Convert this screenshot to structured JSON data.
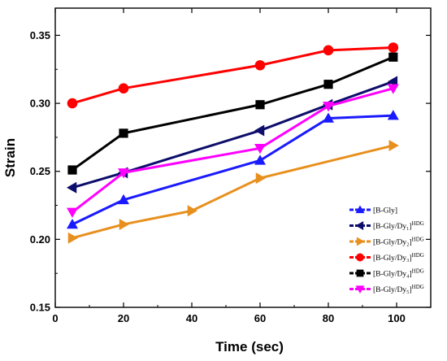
{
  "chart_data": {
    "type": "line",
    "title": "",
    "xlabel": "Time (sec)",
    "ylabel": "Strain",
    "xlim": [
      0,
      110
    ],
    "ylim": [
      0.15,
      0.37
    ],
    "xticks": [
      0,
      20,
      40,
      60,
      80,
      100
    ],
    "yticks": [
      0.15,
      0.2,
      0.25,
      0.3,
      0.35
    ],
    "xtick_labels": [
      "0",
      "20",
      "40",
      "60",
      "80",
      "100"
    ],
    "ytick_labels": [
      "0.15",
      "0.20",
      "0.25",
      "0.30",
      "0.35"
    ],
    "grid": false,
    "legend_position": "bottom-right",
    "series": [
      {
        "name": "[B-Gly]",
        "legend_main": "[B-Gly]",
        "legend_sup": "",
        "color": "#1a1aff",
        "marker": "triangle-up",
        "x": [
          5,
          20,
          60,
          80,
          99
        ],
        "y": [
          0.211,
          0.229,
          0.258,
          0.289,
          0.291
        ]
      },
      {
        "name": "[B-Gly/Dy1]HDG",
        "legend_main": "[B-Gly/Dy₁]",
        "legend_sup": "HDG",
        "color": "#0d0d6b",
        "marker": "triangle-left",
        "x": [
          5,
          20,
          60,
          80,
          99
        ],
        "y": [
          0.238,
          0.249,
          0.28,
          0.299,
          0.316
        ]
      },
      {
        "name": "[B-Gly/Dy2]HDG",
        "legend_main": "[B-Gly/Dy₂]",
        "legend_sup": "HDG",
        "color": "#e8901e",
        "marker": "triangle-right",
        "x": [
          5,
          20,
          40,
          60,
          99
        ],
        "y": [
          0.201,
          0.211,
          0.221,
          0.245,
          0.269
        ]
      },
      {
        "name": "[B-Gly/Dy3]HDG",
        "legend_main": "[B-Gly/Dy₃]",
        "legend_sup": "HDG",
        "color": "#ff0000",
        "marker": "circle",
        "x": [
          5,
          20,
          60,
          80,
          99
        ],
        "y": [
          0.3,
          0.311,
          0.328,
          0.339,
          0.341
        ]
      },
      {
        "name": "[B-Gly/Dy4]HDG",
        "legend_main": "[B-Gly/Dy₄]",
        "legend_sup": "HDG",
        "color": "#000000",
        "marker": "square",
        "x": [
          5,
          20,
          60,
          80,
          99
        ],
        "y": [
          0.251,
          0.278,
          0.299,
          0.314,
          0.334
        ]
      },
      {
        "name": "[B-Gly/Dy5]HDG",
        "legend_main": "[B-Gly/Dy₅]",
        "legend_sup": "HDG",
        "color": "#ff00ff",
        "marker": "triangle-down",
        "x": [
          5,
          20,
          60,
          80,
          99
        ],
        "y": [
          0.22,
          0.249,
          0.267,
          0.298,
          0.311
        ]
      }
    ]
  }
}
